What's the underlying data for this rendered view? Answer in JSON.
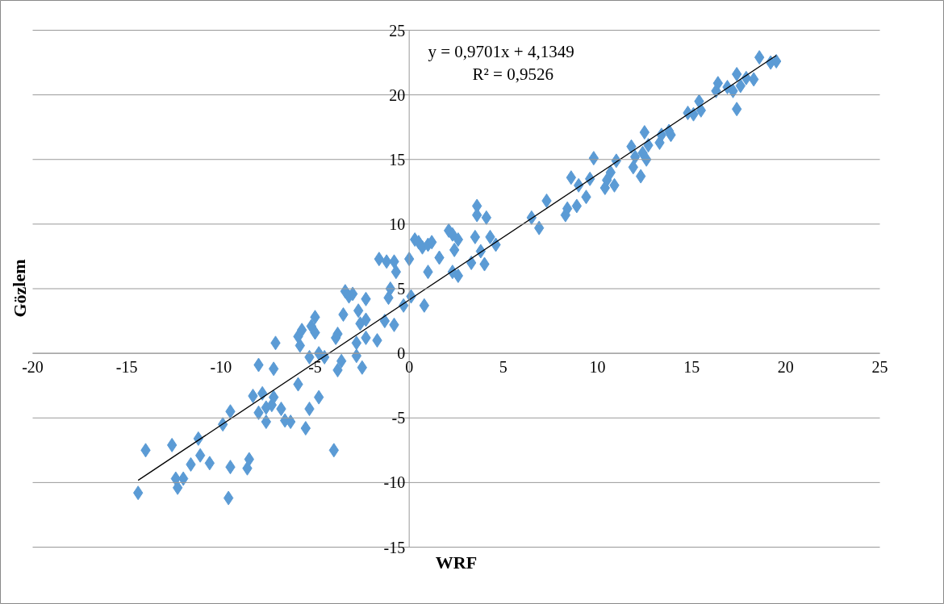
{
  "chart_data": {
    "type": "scatter",
    "xlabel": "WRF",
    "ylabel": "Gözlem",
    "xlim": [
      -20,
      25
    ],
    "ylim": [
      -15,
      25
    ],
    "xticks": [
      -20,
      -15,
      -10,
      -5,
      0,
      5,
      10,
      15,
      20,
      25
    ],
    "yticks": [
      -15,
      -10,
      -5,
      0,
      5,
      10,
      15,
      20,
      25
    ],
    "grid": "y",
    "annotations": [
      "y = 0,9701x + 4,1349",
      "R² = 0,9526"
    ],
    "series": [
      {
        "marker": "diamond",
        "color": "#5b9bd5",
        "x": [
          -14.4,
          -14.0,
          -12.6,
          -12.4,
          -12.3,
          -12.0,
          -11.6,
          -11.2,
          -11.1,
          -10.6,
          -9.9,
          -9.5,
          -9.5,
          -9.6,
          -8.6,
          -8.5,
          -8.3,
          -8.0,
          -8.0,
          -7.8,
          -7.6,
          -7.6,
          -7.3,
          -7.2,
          -7.2,
          -7.1,
          -6.8,
          -6.6,
          -6.3,
          -5.9,
          -5.9,
          -5.8,
          -5.7,
          -5.5,
          -5.3,
          -5.3,
          -5.2,
          -5.0,
          -5.0,
          -4.8,
          -4.8,
          -4.5,
          -4.0,
          -3.9,
          -3.8,
          -3.8,
          -3.6,
          -3.5,
          -3.4,
          -3.2,
          -3.0,
          -2.8,
          -2.8,
          -2.7,
          -2.6,
          -2.5,
          -2.3,
          -2.3,
          -2.3,
          -1.7,
          -1.6,
          -1.3,
          -1.2,
          -1.1,
          -1.0,
          -0.8,
          -0.8,
          -0.7,
          -0.3,
          0.0,
          0.1,
          0.3,
          0.5,
          0.7,
          0.8,
          1.0,
          1.0,
          1.2,
          1.6,
          2.1,
          2.3,
          2.3,
          2.4,
          2.6,
          2.6,
          3.3,
          3.5,
          3.6,
          3.6,
          3.8,
          4.0,
          4.1,
          4.3,
          4.6,
          6.5,
          6.9,
          7.3,
          8.3,
          8.4,
          8.6,
          8.9,
          9.0,
          9.4,
          9.6,
          9.8,
          10.4,
          10.5,
          10.7,
          10.9,
          11.0,
          11.8,
          11.9,
          12.0,
          12.3,
          12.4,
          12.5,
          12.6,
          12.7,
          13.3,
          13.4,
          13.8,
          13.9,
          14.8,
          15.1,
          15.4,
          15.5,
          16.3,
          16.4,
          16.9,
          17.2,
          17.4,
          17.4,
          17.6,
          17.9,
          18.3,
          18.6,
          19.2,
          19.5
        ],
        "values": [
          -10.8,
          -7.5,
          -7.1,
          -9.7,
          -10.4,
          -9.7,
          -8.6,
          -6.6,
          -7.9,
          -8.5,
          -5.5,
          -4.5,
          -8.8,
          -11.2,
          -8.9,
          -8.2,
          -3.3,
          -4.6,
          -0.9,
          -3.1,
          -4.2,
          -5.3,
          -4.0,
          -3.4,
          -1.2,
          0.8,
          -4.3,
          -5.2,
          -5.3,
          -2.4,
          1.3,
          0.6,
          1.8,
          -5.8,
          -0.3,
          -4.3,
          2.1,
          1.6,
          2.8,
          -3.4,
          0.0,
          -0.3,
          -7.5,
          1.2,
          1.5,
          -1.3,
          -0.6,
          3.0,
          4.8,
          4.4,
          4.6,
          0.8,
          -0.2,
          3.3,
          2.3,
          -1.1,
          1.2,
          2.6,
          4.2,
          1.0,
          7.3,
          2.5,
          7.1,
          4.3,
          5.0,
          7.1,
          2.2,
          6.3,
          3.7,
          7.3,
          4.4,
          8.8,
          8.6,
          8.2,
          3.7,
          8.4,
          6.3,
          8.6,
          7.4,
          9.5,
          9.2,
          6.3,
          8.0,
          6.0,
          8.8,
          7.0,
          9.0,
          11.4,
          10.7,
          7.9,
          6.9,
          10.5,
          9.0,
          8.4,
          10.5,
          9.7,
          11.8,
          10.7,
          11.2,
          13.6,
          11.4,
          13.0,
          12.1,
          13.5,
          15.1,
          12.8,
          13.4,
          14.0,
          13.0,
          14.9,
          16.0,
          14.4,
          15.2,
          13.7,
          15.5,
          17.1,
          15.0,
          16.1,
          16.3,
          16.9,
          17.2,
          16.9,
          18.6,
          18.5,
          19.5,
          18.8,
          20.3,
          20.9,
          20.6,
          20.3,
          21.6,
          18.9,
          20.7,
          21.3,
          21.2,
          22.9,
          22.5,
          22.6
        ]
      },
      {
        "type": "line",
        "color": "#000000",
        "x": [
          -14.4,
          19.5
        ],
        "values": [
          -9.83,
          23.05
        ]
      }
    ]
  }
}
